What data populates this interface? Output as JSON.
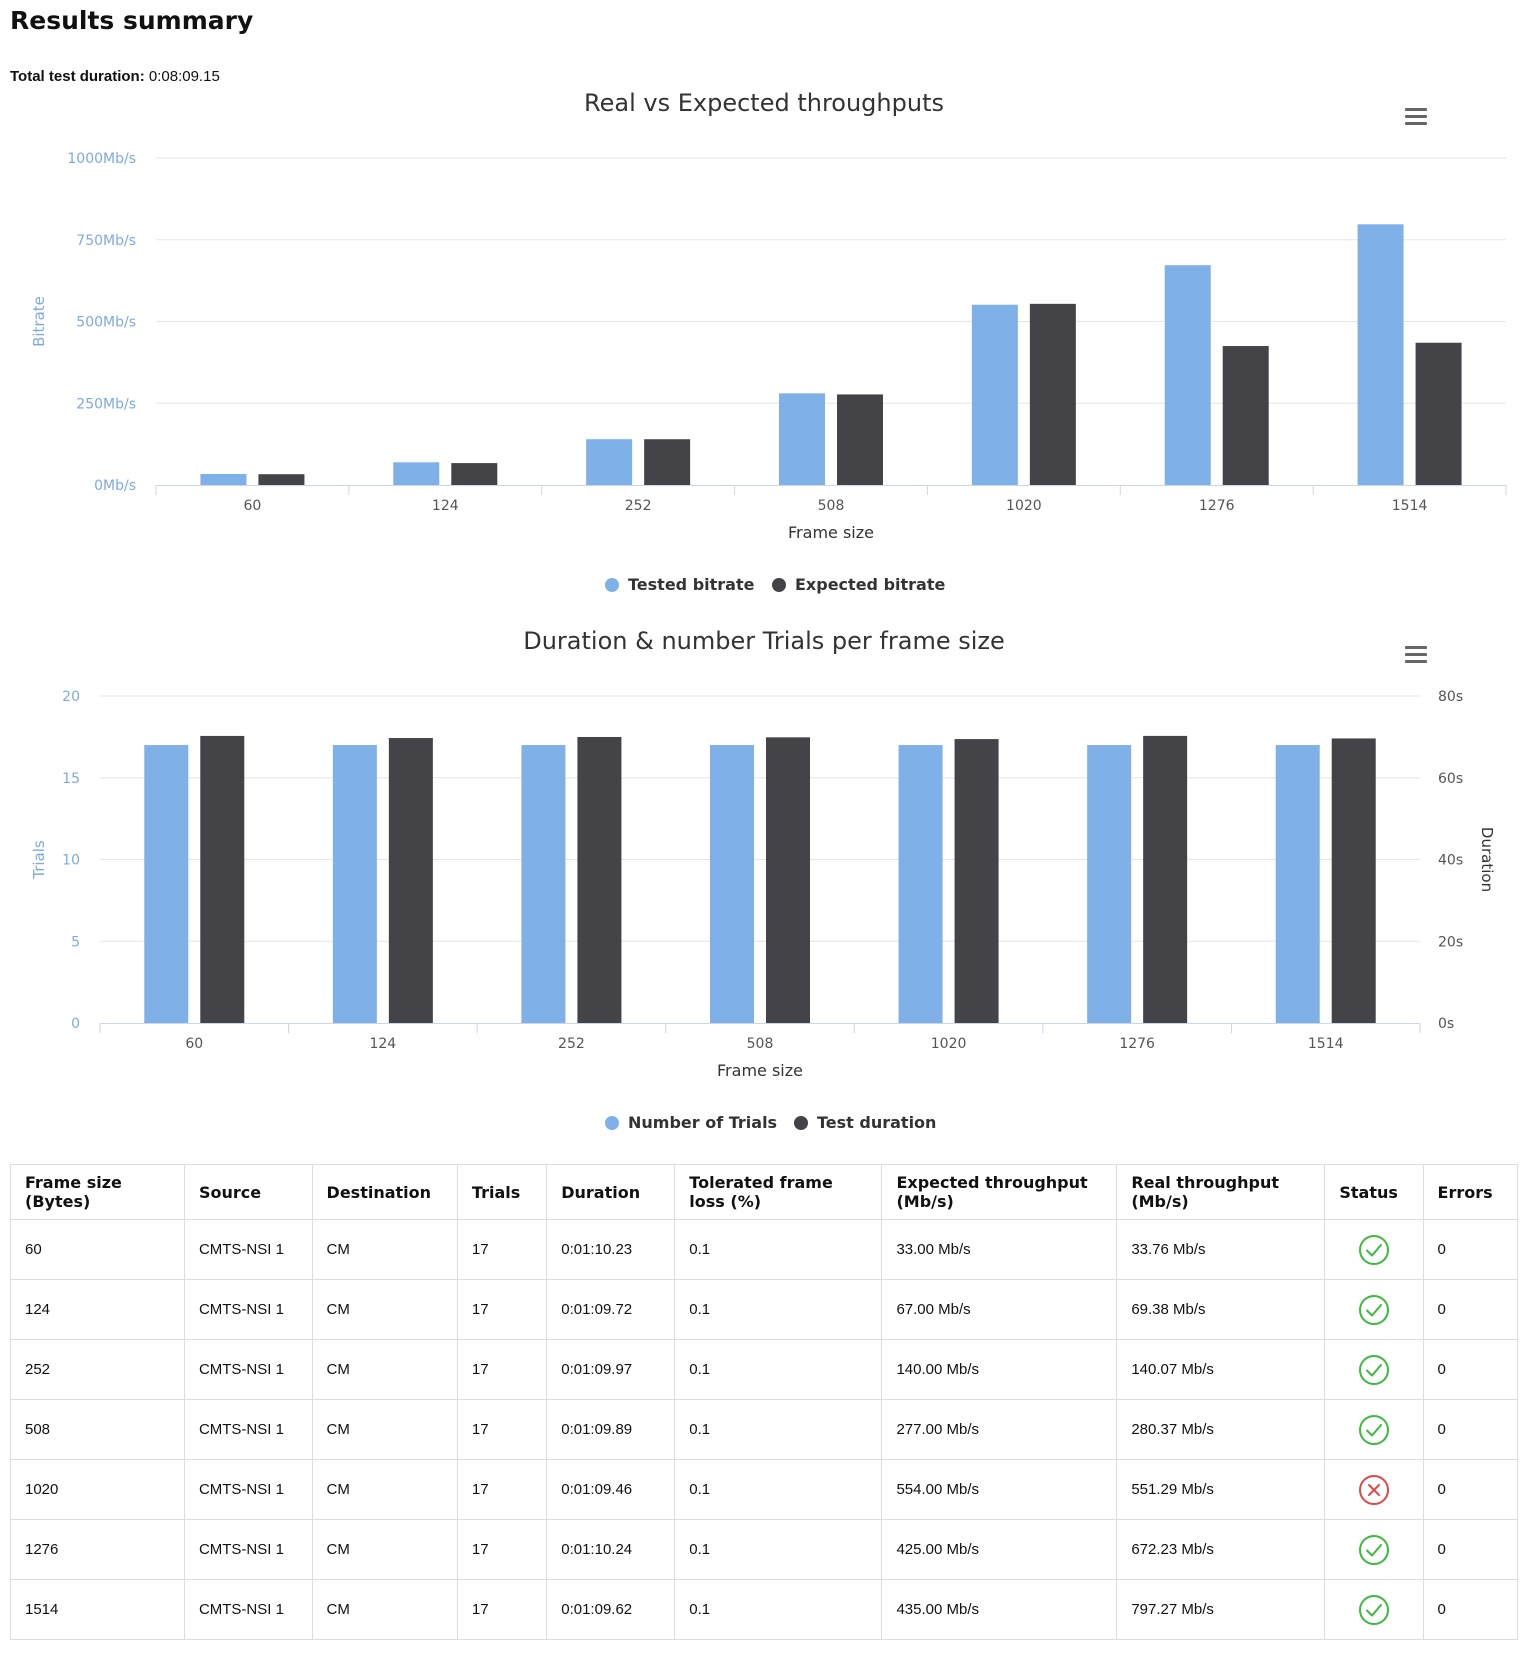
{
  "page": {
    "title": "Results summary",
    "total_duration_label": "Total test duration:",
    "total_duration_value": "0:08:09.15"
  },
  "colors": {
    "tested": "#7FB0E8",
    "expected": "#434348",
    "grid": "#e6e6e6",
    "axis": "#ccd6eb",
    "ok": "#3cba3c",
    "fail": "#e04848"
  },
  "chart_data": [
    {
      "type": "bar",
      "title": "Real vs Expected throughputs",
      "xlabel": "Frame size",
      "ylabel": "Bitrate",
      "categories": [
        "60",
        "124",
        "252",
        "508",
        "1020",
        "1276",
        "1514"
      ],
      "y_ticks": [
        "0Mb/s",
        "250Mb/s",
        "500Mb/s",
        "750Mb/s",
        "1000Mb/s"
      ],
      "ylim": [
        0,
        1000
      ],
      "series": [
        {
          "name": "Tested bitrate",
          "values": [
            33.76,
            69.38,
            140.07,
            280.37,
            551.29,
            672.23,
            797.27
          ]
        },
        {
          "name": "Expected bitrate",
          "values": [
            33.0,
            67.0,
            140.0,
            277.0,
            554.0,
            425.0,
            435.0
          ]
        }
      ],
      "legend": "bottom-center"
    },
    {
      "type": "bar",
      "title": "Duration & number Trials per frame size",
      "xlabel": "Frame size",
      "ylabel": "Trials",
      "y2label": "Duration",
      "categories": [
        "60",
        "124",
        "252",
        "508",
        "1020",
        "1276",
        "1514"
      ],
      "y_ticks": [
        "0",
        "5",
        "10",
        "15",
        "20"
      ],
      "y2_ticks": [
        "0s",
        "20s",
        "40s",
        "60s",
        "80s"
      ],
      "ylim": [
        0,
        20
      ],
      "y2lim": [
        0,
        80
      ],
      "series": [
        {
          "name": "Number of Trials",
          "axis": "left",
          "values": [
            17,
            17,
            17,
            17,
            17,
            17,
            17
          ]
        },
        {
          "name": "Test duration",
          "axis": "right",
          "values": [
            70.23,
            69.72,
            69.97,
            69.89,
            69.46,
            70.24,
            69.62
          ]
        }
      ],
      "legend": "bottom-center"
    }
  ],
  "table": {
    "headers": [
      "Frame size (Bytes)",
      "Source",
      "Destination",
      "Trials",
      "Duration",
      "Tolerated frame loss (%)",
      "Expected throughput (Mb/s)",
      "Real throughput (Mb/s)",
      "Status",
      "Errors"
    ],
    "rows": [
      {
        "frame": "60",
        "source": "CMTS-NSI 1",
        "dest": "CM",
        "trials": "17",
        "duration": "0:01:10.23",
        "loss": "0.1",
        "expected": "33.00 Mb/s",
        "real": "33.76 Mb/s",
        "status": "pass",
        "errors": "0"
      },
      {
        "frame": "124",
        "source": "CMTS-NSI 1",
        "dest": "CM",
        "trials": "17",
        "duration": "0:01:09.72",
        "loss": "0.1",
        "expected": "67.00 Mb/s",
        "real": "69.38 Mb/s",
        "status": "pass",
        "errors": "0"
      },
      {
        "frame": "252",
        "source": "CMTS-NSI 1",
        "dest": "CM",
        "trials": "17",
        "duration": "0:01:09.97",
        "loss": "0.1",
        "expected": "140.00 Mb/s",
        "real": "140.07 Mb/s",
        "status": "pass",
        "errors": "0"
      },
      {
        "frame": "508",
        "source": "CMTS-NSI 1",
        "dest": "CM",
        "trials": "17",
        "duration": "0:01:09.89",
        "loss": "0.1",
        "expected": "277.00 Mb/s",
        "real": "280.37 Mb/s",
        "status": "pass",
        "errors": "0"
      },
      {
        "frame": "1020",
        "source": "CMTS-NSI 1",
        "dest": "CM",
        "trials": "17",
        "duration": "0:01:09.46",
        "loss": "0.1",
        "expected": "554.00 Mb/s",
        "real": "551.29 Mb/s",
        "status": "fail",
        "errors": "0"
      },
      {
        "frame": "1276",
        "source": "CMTS-NSI 1",
        "dest": "CM",
        "trials": "17",
        "duration": "0:01:10.24",
        "loss": "0.1",
        "expected": "425.00 Mb/s",
        "real": "672.23 Mb/s",
        "status": "pass",
        "errors": "0"
      },
      {
        "frame": "1514",
        "source": "CMTS-NSI 1",
        "dest": "CM",
        "trials": "17",
        "duration": "0:01:09.62",
        "loss": "0.1",
        "expected": "435.00 Mb/s",
        "real": "797.27 Mb/s",
        "status": "pass",
        "errors": "0"
      }
    ]
  }
}
